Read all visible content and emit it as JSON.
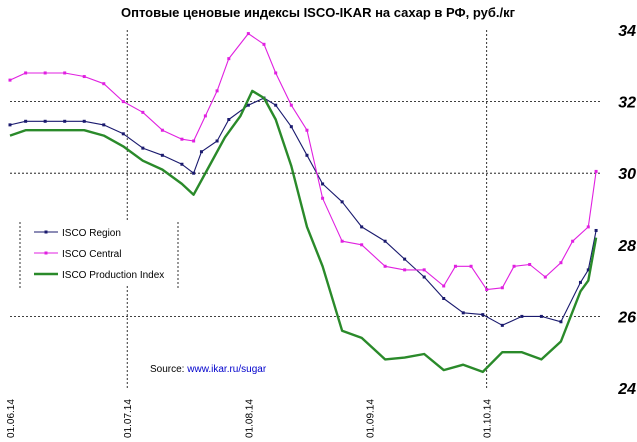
{
  "chart_data": {
    "type": "line",
    "title": "Оптовые ценовые индексы ISCO-IKAR на сахар в РФ, руб./кг",
    "xlabel": "",
    "ylabel": "",
    "ylim": [
      24,
      34
    ],
    "yticks": [
      "24",
      "26",
      "28",
      "30",
      "32",
      "34"
    ],
    "yticks_values": [
      24,
      26,
      28,
      30,
      32,
      34
    ],
    "xlim": [
      "2014-06-01",
      "2014-10-30"
    ],
    "xticks": [
      {
        "date": "2014-06-01",
        "label": "01.06.14"
      },
      {
        "date": "2014-07-01",
        "label": "01.07.14"
      },
      {
        "date": "2014-08-01",
        "label": "01.08.14"
      },
      {
        "date": "2014-09-01",
        "label": "01.09.14"
      },
      {
        "date": "2014-10-01",
        "label": "01.10.14"
      }
    ],
    "grid": "dashed horizontal at 26, 30, 32; dashed vertical at 01.07.14 and 01.10.14",
    "legend_position": "left",
    "source_label": "Source: ",
    "source_url": "www.ikar.ru/sugar",
    "series": [
      {
        "name": "ISCO Region",
        "color": "#1a1a6e",
        "style": "line-with-small-markers",
        "points": [
          [
            "2014-06-01",
            31.35
          ],
          [
            "2014-06-05",
            31.45
          ],
          [
            "2014-06-10",
            31.45
          ],
          [
            "2014-06-15",
            31.45
          ],
          [
            "2014-06-20",
            31.45
          ],
          [
            "2014-06-25",
            31.35
          ],
          [
            "2014-06-30",
            31.1
          ],
          [
            "2014-07-05",
            30.7
          ],
          [
            "2014-07-10",
            30.5
          ],
          [
            "2014-07-15",
            30.25
          ],
          [
            "2014-07-18",
            30.0
          ],
          [
            "2014-07-20",
            30.6
          ],
          [
            "2014-07-24",
            30.9
          ],
          [
            "2014-07-27",
            31.5
          ],
          [
            "2014-08-01",
            31.9
          ],
          [
            "2014-08-05",
            32.1
          ],
          [
            "2014-08-08",
            31.9
          ],
          [
            "2014-08-12",
            31.3
          ],
          [
            "2014-08-16",
            30.5
          ],
          [
            "2014-08-20",
            29.7
          ],
          [
            "2014-08-25",
            29.2
          ],
          [
            "2014-08-30",
            28.5
          ],
          [
            "2014-09-05",
            28.1
          ],
          [
            "2014-09-10",
            27.6
          ],
          [
            "2014-09-15",
            27.1
          ],
          [
            "2014-09-20",
            26.5
          ],
          [
            "2014-09-25",
            26.1
          ],
          [
            "2014-09-30",
            26.05
          ],
          [
            "2014-10-05",
            25.75
          ],
          [
            "2014-10-10",
            26.0
          ],
          [
            "2014-10-15",
            26.0
          ],
          [
            "2014-10-20",
            25.85
          ],
          [
            "2014-10-25",
            26.95
          ],
          [
            "2014-10-27",
            27.3
          ],
          [
            "2014-10-29",
            28.4
          ]
        ]
      },
      {
        "name": "ISCO Central",
        "color": "#e020e0",
        "style": "line-with-small-markers",
        "points": [
          [
            "2014-06-01",
            32.6
          ],
          [
            "2014-06-05",
            32.8
          ],
          [
            "2014-06-10",
            32.8
          ],
          [
            "2014-06-15",
            32.8
          ],
          [
            "2014-06-20",
            32.7
          ],
          [
            "2014-06-25",
            32.5
          ],
          [
            "2014-06-30",
            32.0
          ],
          [
            "2014-07-05",
            31.7
          ],
          [
            "2014-07-10",
            31.2
          ],
          [
            "2014-07-15",
            30.95
          ],
          [
            "2014-07-18",
            30.9
          ],
          [
            "2014-07-21",
            31.6
          ],
          [
            "2014-07-24",
            32.3
          ],
          [
            "2014-07-27",
            33.2
          ],
          [
            "2014-08-01",
            33.9
          ],
          [
            "2014-08-05",
            33.6
          ],
          [
            "2014-08-08",
            32.8
          ],
          [
            "2014-08-12",
            31.9
          ],
          [
            "2014-08-16",
            31.2
          ],
          [
            "2014-08-20",
            29.3
          ],
          [
            "2014-08-25",
            28.1
          ],
          [
            "2014-08-30",
            28.0
          ],
          [
            "2014-09-05",
            27.4
          ],
          [
            "2014-09-10",
            27.3
          ],
          [
            "2014-09-15",
            27.3
          ],
          [
            "2014-09-20",
            26.85
          ],
          [
            "2014-09-23",
            27.4
          ],
          [
            "2014-09-27",
            27.4
          ],
          [
            "2014-10-01",
            26.75
          ],
          [
            "2014-10-05",
            26.8
          ],
          [
            "2014-10-08",
            27.4
          ],
          [
            "2014-10-12",
            27.45
          ],
          [
            "2014-10-16",
            27.1
          ],
          [
            "2014-10-20",
            27.5
          ],
          [
            "2014-10-23",
            28.1
          ],
          [
            "2014-10-27",
            28.5
          ],
          [
            "2014-10-29",
            30.05
          ]
        ]
      },
      {
        "name": "ISCO Production Index",
        "color": "#2a8a2a",
        "style": "thick-line",
        "points": [
          [
            "2014-06-01",
            31.05
          ],
          [
            "2014-06-05",
            31.2
          ],
          [
            "2014-06-10",
            31.2
          ],
          [
            "2014-06-15",
            31.2
          ],
          [
            "2014-06-20",
            31.2
          ],
          [
            "2014-06-25",
            31.05
          ],
          [
            "2014-06-30",
            30.75
          ],
          [
            "2014-07-05",
            30.35
          ],
          [
            "2014-07-10",
            30.1
          ],
          [
            "2014-07-15",
            29.7
          ],
          [
            "2014-07-18",
            29.4
          ],
          [
            "2014-07-22",
            30.2
          ],
          [
            "2014-07-26",
            31.0
          ],
          [
            "2014-07-30",
            31.6
          ],
          [
            "2014-08-02",
            32.3
          ],
          [
            "2014-08-05",
            32.1
          ],
          [
            "2014-08-08",
            31.5
          ],
          [
            "2014-08-12",
            30.2
          ],
          [
            "2014-08-16",
            28.5
          ],
          [
            "2014-08-20",
            27.4
          ],
          [
            "2014-08-25",
            25.6
          ],
          [
            "2014-08-30",
            25.4
          ],
          [
            "2014-09-05",
            24.8
          ],
          [
            "2014-09-10",
            24.85
          ],
          [
            "2014-09-15",
            24.95
          ],
          [
            "2014-09-20",
            24.5
          ],
          [
            "2014-09-25",
            24.65
          ],
          [
            "2014-09-30",
            24.45
          ],
          [
            "2014-10-05",
            25.0
          ],
          [
            "2014-10-10",
            25.0
          ],
          [
            "2014-10-15",
            24.8
          ],
          [
            "2014-10-20",
            25.3
          ],
          [
            "2014-10-25",
            26.7
          ],
          [
            "2014-10-27",
            27.0
          ],
          [
            "2014-10-29",
            28.2
          ]
        ]
      }
    ]
  }
}
